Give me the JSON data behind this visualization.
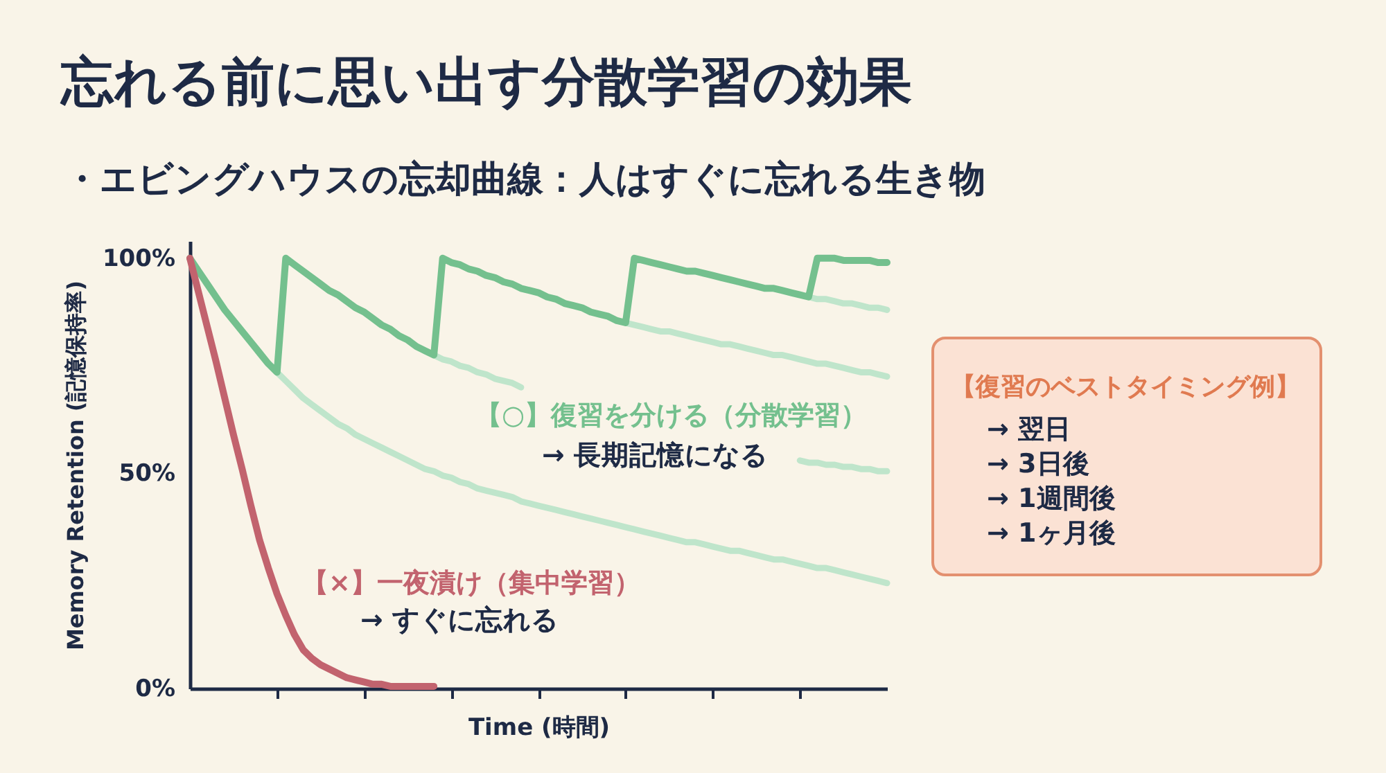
{
  "chart_data": [
    {
      "type": "line",
      "title": "忘れる前に思い出す分散学習の効果",
      "subtitle": "・エビングハウスの忘却曲線：人はすぐに忘れる生き物",
      "xlabel": "Time (時間)",
      "ylabel": "Memory Retention (記憶保持率)",
      "categories": [
        null,
        null,
        null,
        null,
        null,
        null,
        null,
        null,
        null,
        null,
        null,
        null,
        null,
        null,
        null,
        null,
        null,
        null,
        null,
        null,
        null,
        null,
        null,
        null,
        null,
        null,
        null,
        null,
        null,
        null,
        null,
        null,
        null,
        null,
        null,
        null,
        null,
        null,
        null,
        null,
        null,
        null,
        null,
        null,
        null,
        null,
        null,
        null,
        null,
        null,
        null,
        null,
        null,
        null,
        null,
        null,
        null,
        null,
        null,
        null,
        null,
        null,
        null,
        null,
        null,
        null,
        null,
        null,
        null,
        null,
        null,
        null,
        null,
        null,
        null,
        null,
        null,
        null,
        null,
        null,
        null
      ],
      "ylim": [
        0,
        104
      ],
      "yticks": [
        {
          "value": 0,
          "label": "0%"
        },
        {
          "value": 50,
          "label": "50%"
        },
        {
          "value": 100,
          "label": "100%"
        }
      ],
      "series": [
        {
          "color": "#bfe5cb",
          "values": [
            null,
            null,
            null,
            null,
            null,
            null,
            null,
            null,
            null,
            null,
            73.5,
            71.5,
            69.5,
            67.5,
            66,
            64.5,
            63,
            61.5,
            60.5,
            59,
            58,
            57,
            56,
            55,
            54,
            53,
            52,
            51,
            50.5,
            49.5,
            49,
            48,
            47.5,
            46.5,
            46,
            45.5,
            45,
            44.5,
            43.5,
            43,
            42.5,
            42,
            41.5,
            41,
            40.5,
            40,
            39.5,
            39,
            38.5,
            38,
            37.5,
            37,
            36.5,
            36,
            35.5,
            35,
            34.5,
            34,
            34,
            33.5,
            33,
            32.5,
            32,
            32,
            31.5,
            31,
            30.5,
            30,
            30,
            29.5,
            29,
            28.5,
            28,
            28,
            27.5,
            27,
            26.5,
            26,
            25.5,
            25,
            24.5
          ]
        },
        {
          "color": "#bfe5cb",
          "values": [
            null,
            null,
            null,
            null,
            null,
            null,
            null,
            null,
            null,
            null,
            null,
            null,
            null,
            null,
            null,
            null,
            null,
            null,
            null,
            null,
            null,
            null,
            null,
            null,
            null,
            null,
            null,
            null,
            77.5,
            76.5,
            76,
            75,
            74.5,
            73.5,
            73,
            72,
            71.5,
            71,
            70,
            null,
            null,
            null,
            null,
            null,
            null,
            null,
            null,
            null,
            null,
            null,
            null,
            null,
            null,
            null,
            null,
            null,
            null,
            null,
            null,
            null,
            null,
            null,
            null,
            null,
            null,
            null,
            null,
            null,
            null,
            null,
            53,
            52.5,
            52.5,
            52,
            52,
            51.5,
            51.5,
            51,
            51,
            50.5,
            50.5
          ]
        },
        {
          "color": "#bfe5cb",
          "values": [
            null,
            null,
            null,
            null,
            null,
            null,
            null,
            null,
            null,
            null,
            null,
            null,
            null,
            null,
            null,
            null,
            null,
            null,
            null,
            null,
            null,
            null,
            null,
            null,
            null,
            null,
            null,
            null,
            null,
            null,
            null,
            null,
            null,
            null,
            null,
            null,
            null,
            null,
            null,
            null,
            null,
            null,
            null,
            null,
            null,
            null,
            null,
            null,
            null,
            null,
            85,
            84.5,
            84,
            83.5,
            83,
            83,
            82.5,
            82,
            81.5,
            81,
            80.5,
            80,
            80,
            79.5,
            79,
            78.5,
            78,
            77.5,
            77.5,
            77,
            76.5,
            76,
            75.5,
            75.5,
            75,
            74.5,
            74,
            73.5,
            73.5,
            73,
            72.5
          ]
        },
        {
          "color": "#bfe5cb",
          "values": [
            null,
            null,
            null,
            null,
            null,
            null,
            null,
            null,
            null,
            null,
            null,
            null,
            null,
            null,
            null,
            null,
            null,
            null,
            null,
            null,
            null,
            null,
            null,
            null,
            null,
            null,
            null,
            null,
            null,
            null,
            null,
            null,
            null,
            null,
            null,
            null,
            null,
            null,
            null,
            null,
            null,
            null,
            null,
            null,
            null,
            null,
            null,
            null,
            null,
            null,
            null,
            null,
            null,
            null,
            null,
            null,
            null,
            null,
            null,
            null,
            null,
            null,
            null,
            null,
            null,
            null,
            null,
            null,
            null,
            null,
            null,
            91,
            90.5,
            90.5,
            90,
            89.5,
            89.5,
            89,
            88.5,
            88.5,
            88
          ]
        },
        {
          "name": "【○】復習を分ける（分散学習）",
          "color": "#74c08e",
          "values": [
            100,
            97,
            94,
            91,
            88,
            85.5,
            83,
            80.5,
            78,
            75.5,
            73.5,
            100,
            98.5,
            97,
            95.5,
            94,
            92.5,
            91.5,
            90,
            88.5,
            87.5,
            86,
            84.5,
            83.5,
            82,
            81,
            79.5,
            78.5,
            77.5,
            100,
            99,
            98.5,
            97.5,
            97,
            96,
            95.5,
            94.5,
            94,
            93,
            92.5,
            92,
            91,
            90.5,
            89.5,
            89,
            88.5,
            87.5,
            87,
            86.5,
            85.5,
            85,
            100,
            99.5,
            99,
            98.5,
            98,
            97.5,
            97,
            97,
            96.5,
            96,
            95.5,
            95,
            94.5,
            94,
            93.5,
            93,
            93,
            92.5,
            92,
            91.5,
            91,
            100,
            100,
            100,
            99.5,
            99.5,
            99.5,
            99.5,
            99,
            99
          ]
        },
        {
          "name": "【×】一夜漬け（集中学習）",
          "color": "#c2636e",
          "values": [
            100,
            92,
            84,
            76,
            67.5,
            59,
            51,
            42.5,
            34.5,
            28,
            22,
            17,
            12.5,
            9,
            7,
            5.5,
            4.5,
            3.5,
            2.5,
            2,
            1.5,
            1,
            1,
            0.5,
            0.5,
            0.5,
            0.5,
            0.5,
            0.5,
            null,
            null,
            null,
            null,
            null,
            null,
            null,
            null,
            null,
            null,
            null,
            null,
            null,
            null,
            null,
            null,
            null,
            null,
            null,
            null,
            null,
            null,
            null,
            null,
            null,
            null,
            null,
            null,
            null,
            null,
            null,
            null,
            null,
            null,
            null,
            null,
            null,
            null,
            null,
            null,
            null,
            null,
            null,
            null,
            null,
            null,
            null,
            null,
            null,
            null,
            null,
            null
          ]
        }
      ],
      "annotations": [
        "→ 長期記憶になる",
        "→ すぐに忘れる"
      ]
    },
    {
      "type": "other",
      "title": "【復習のベストタイミング例】",
      "annotations": [
        "→ 翌日",
        "→ 3日後",
        "→ 1週間後",
        "→ 1ヶ月後"
      ]
    }
  ]
}
